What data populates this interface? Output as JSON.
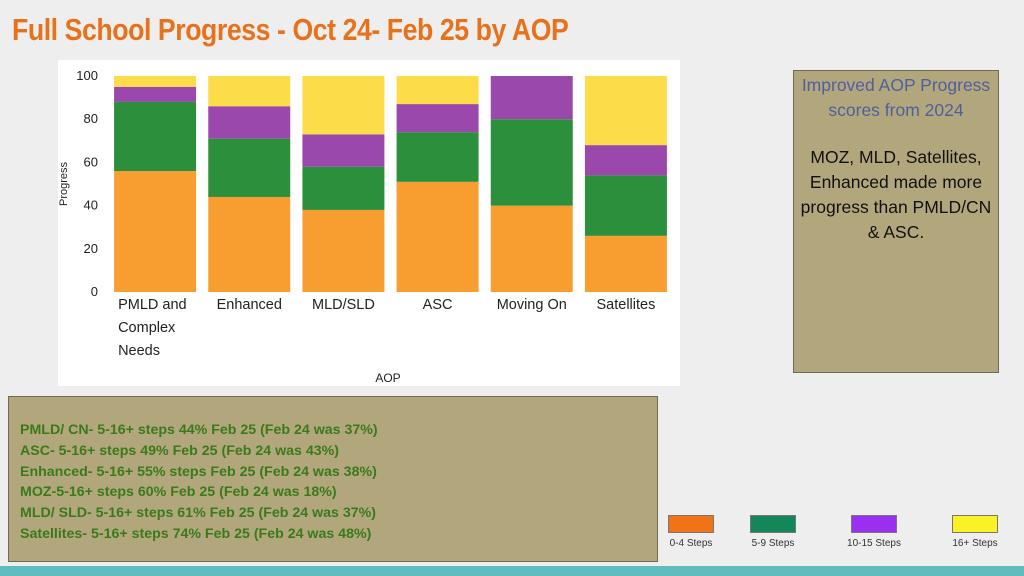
{
  "title": "Full School Progress - Oct 24- Feb 25 by AOP",
  "note": {
    "heading": "Improved AOP Progress scores from 2024",
    "body": "MOZ, MLD, Satellites, Enhanced made more progress than PMLD/CN & ASC."
  },
  "stats": [
    "PMLD/ CN- 5-16+ steps 44% Feb 25 (Feb 24 was 37%)",
    "ASC- 5-16+ steps 49% Feb 25 (Feb 24 was 43%)",
    "Enhanced- 5-16+  55% steps Feb 25 (Feb 24 was 38%)",
    "MOZ-5-16+ steps 60% Feb 25 (Feb 24 was 18%)",
    "MLD/ SLD- 5-16+ steps 61% Feb 25 (Feb 24 was 37%)",
    "Satellites- 5-16+ steps 74% Feb 25 (Feb 24 was 48%)"
  ],
  "legend": [
    {
      "label": "0-4 Steps",
      "color": "#f07318"
    },
    {
      "label": "5-9 Steps",
      "color": "#13875a"
    },
    {
      "label": "10-15 Steps",
      "color": "#9b2fef"
    },
    {
      "label": "16+ Steps",
      "color": "#fbf225"
    }
  ],
  "chart_data": {
    "type": "bar",
    "stacked": true,
    "title": "",
    "xlabel": "AOP",
    "ylabel": "Progress",
    "ylim": [
      0,
      100
    ],
    "yticks": [
      0,
      20,
      40,
      60,
      80,
      100
    ],
    "categories": [
      [
        "PMLD and",
        "Complex",
        "Needs"
      ],
      [
        "Enhanced"
      ],
      [
        "MLD/SLD"
      ],
      [
        "ASC"
      ],
      [
        "Moving On"
      ],
      [
        "Satellites"
      ]
    ],
    "series": [
      {
        "name": "0-4 Steps",
        "color": "#f89e31",
        "values": [
          56,
          44,
          38,
          51,
          40,
          26
        ]
      },
      {
        "name": "5-9 Steps",
        "color": "#2c8f3c",
        "values": [
          32,
          27,
          20,
          23,
          40,
          28
        ]
      },
      {
        "name": "10-15 Steps",
        "color": "#9a48ab",
        "values": [
          7,
          15,
          15,
          13,
          20,
          14
        ]
      },
      {
        "name": "16+ Steps",
        "color": "#fddc4a",
        "values": [
          5,
          14,
          27,
          13,
          0,
          32
        ]
      }
    ]
  }
}
